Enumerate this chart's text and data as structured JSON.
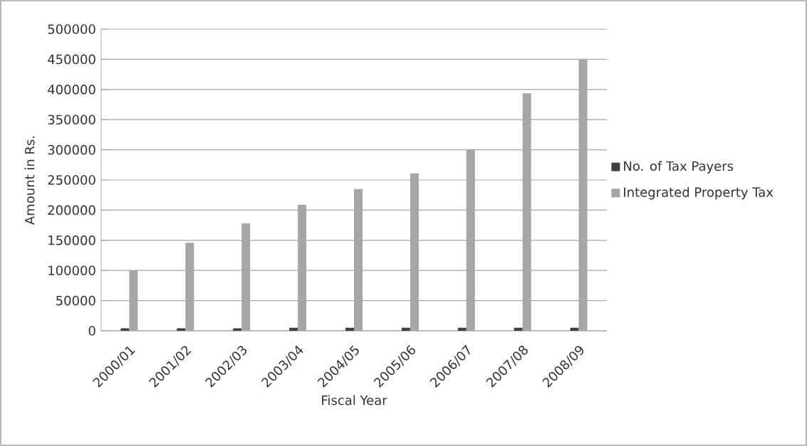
{
  "chart_data": {
    "type": "bar",
    "xlabel": "Fiscal Year",
    "ylabel": "Amount in Rs.",
    "categories": [
      "2000/01",
      "2001/02",
      "2002/03",
      "2003/04",
      "2004/05",
      "2005/06",
      "2006/07",
      "2007/08",
      "2008/09"
    ],
    "series": [
      {
        "name": "No. of Tax Payers",
        "color": "#404040",
        "values": [
          4000,
          4000,
          4000,
          5000,
          5000,
          5000,
          5000,
          5000,
          5000
        ]
      },
      {
        "name": "Integrated Property Tax",
        "color": "#a6a6a6",
        "values": [
          100000,
          146000,
          178000,
          209000,
          235000,
          261000,
          301000,
          394000,
          450000
        ]
      }
    ],
    "ylim": [
      0,
      500000
    ],
    "yticks": [
      0,
      50000,
      100000,
      150000,
      200000,
      250000,
      300000,
      350000,
      400000,
      450000,
      500000
    ],
    "grid": "y",
    "legend": "right"
  }
}
